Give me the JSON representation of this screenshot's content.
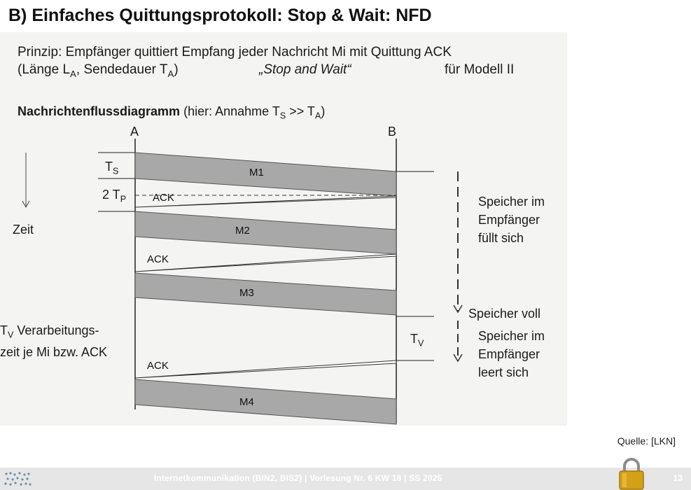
{
  "title": "B) Einfaches Quittungsprotokoll: Stop & Wait: NFD",
  "principle": {
    "line1": "Prinzip: Empfänger quittiert Empfang jeder Nachricht Mi mit Quittung ACK",
    "line2_prefix": "(Länge L",
    "line2_sub1": "A",
    "line2_mid": ", Sendedauer T",
    "line2_sub2": "A",
    "line2_suffix": ")",
    "quote": "„Stop and Wait“",
    "model": "für Modell II"
  },
  "flow_heading": {
    "bold": "Nachrichtenflussdiagramm",
    "rest_prefix": " (hier: Annahme T",
    "sub1": "S",
    "rest_mid": " >> T",
    "sub2": "A",
    "rest_suffix": ")"
  },
  "diagram": {
    "node_a": "A",
    "node_b": "B",
    "messages": [
      "M1",
      "M2",
      "M3",
      "M4"
    ],
    "ack": [
      "ACK",
      "ACK",
      "ACK"
    ],
    "ts_label": "T",
    "ts_sub": "S",
    "tp_label": "2 T",
    "tp_sub": "P",
    "tv_label": "T",
    "tv_sub": "V",
    "zeit": "Zeit",
    "tv_desc_1_prefix": "T",
    "tv_desc_1_sub": "V",
    "tv_desc_1_rest": " Verarbeitungs-",
    "tv_desc_2": "zeit je Mi bzw. ACK",
    "fill_lines": [
      "Speicher im",
      "Empfänger",
      "füllt sich"
    ],
    "full": "Speicher voll",
    "empty_lines": [
      "Speicher im",
      "Empfänger",
      "leert sich"
    ]
  },
  "source": "Quelle: [LKN]",
  "footer": {
    "text": "Internetkommunikation (BIN2, BIS2) | Vorlesung Nr. 6 KW 18 | SS 2025",
    "page": "13"
  },
  "colors": {
    "band": "#a8a8a8",
    "footer_bg": "#e6e6e6",
    "lock": "#d4a017"
  },
  "icons": [
    "university-logo-icon",
    "lock-icon",
    "time-arrow-icon"
  ]
}
